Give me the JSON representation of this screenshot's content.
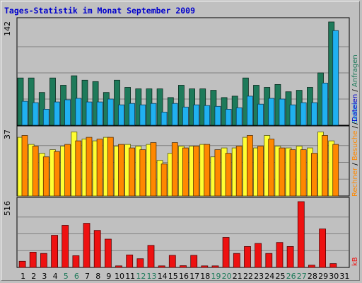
{
  "chart_data": {
    "type": "bar",
    "title": "Tages-Statistik im Monat September 2009",
    "categories": [
      "1",
      "2",
      "3",
      "4",
      "5",
      "6",
      "7",
      "8",
      "9",
      "10",
      "11",
      "12",
      "13",
      "14",
      "15",
      "16",
      "17",
      "18",
      "19",
      "20",
      "21",
      "22",
      "23",
      "24",
      "25",
      "26",
      "27",
      "28",
      "29",
      "30",
      "31"
    ],
    "weekend_categories": [
      "5",
      "6",
      "12",
      "13",
      "19",
      "20",
      "26",
      "27"
    ],
    "panels": [
      {
        "id": "requests",
        "ymax_label": "142",
        "ymax": 142,
        "series": [
          {
            "name": "Anfragen",
            "color": "#1e7a5a",
            "values": [
              65,
              65,
              45,
              65,
              55,
              68,
              62,
              60,
              45,
              62,
              52,
              50,
              50,
              50,
              38,
              55,
              50,
              50,
              48,
              38,
              40,
              65,
              55,
              52,
              56,
              46,
              48,
              52,
              72,
              142,
              0
            ]
          },
          {
            "name": "Dateien",
            "color": "#20b0f0",
            "values": [
              33,
              31,
              22,
              32,
              35,
              37,
              32,
              32,
              36,
              28,
              30,
              28,
              30,
              18,
              30,
              25,
              28,
              27,
              26,
              22,
              24,
              40,
              29,
              37,
              36,
              28,
              31,
              31,
              58,
              130,
              0
            ]
          }
        ]
      },
      {
        "id": "visits",
        "ymax_label": "37",
        "ymax": 37,
        "series": [
          {
            "name": "Seiten",
            "color": "#ffff33",
            "values": [
              33,
              29,
              24,
              26,
              28,
              36,
              32,
              31,
              33,
              28,
              29,
              28,
              29,
              20,
              24,
              28,
              28,
              29,
              22,
              27,
              27,
              33,
              27,
              34,
              28,
              27,
              28,
              27,
              36,
              31,
              0
            ]
          },
          {
            "name": "Besuche",
            "color": "#ff8800",
            "values": [
              34,
              28,
              22,
              25,
              29,
              31,
              33,
              32,
              33,
              29,
              27,
              26,
              30,
              18,
              30,
              27,
              28,
              29,
              26,
              24,
              28,
              34,
              28,
              32,
              27,
              26,
              26,
              24,
              34,
              29,
              0
            ]
          }
        ]
      },
      {
        "id": "traffic",
        "ymax_label": "516",
        "ymax": 516,
        "series": [
          {
            "name": "kB",
            "color": "#ee1111",
            "values": [
              48,
              120,
              110,
              252,
              330,
              92,
              346,
              290,
              222,
              12,
              98,
              68,
              173,
              12,
              95,
              14,
              95,
              12,
              12,
              236,
              110,
              164,
              188,
              110,
              196,
              164,
              516,
              18,
              302,
              30,
              0
            ]
          }
        ]
      }
    ],
    "legend_right": [
      {
        "text": "Anfragen",
        "color": "#1e7a5a"
      },
      {
        "text": "Dateien",
        "color": "#0000cc"
      },
      {
        "text": "Seiten",
        "color": "#20b0f0"
      },
      {
        "text": "Besuche",
        "color": "#ff8800"
      },
      {
        "text": "Rechner",
        "color": "#ff8800"
      },
      {
        "text": "kB",
        "color": "#ee1111"
      }
    ]
  }
}
